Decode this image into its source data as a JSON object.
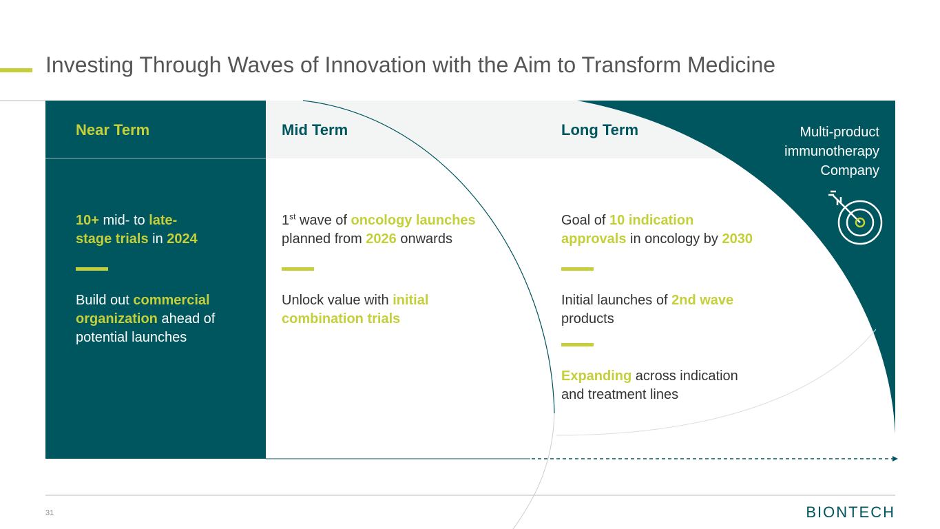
{
  "title": "Investing Through Waves of Innovation with the Aim to Transform Medicine",
  "columns": [
    {
      "heading": "Near Term",
      "blocks": [
        [
          [
            {
              "text": "10+",
              "accent": true
            },
            {
              "text": " mid- to "
            },
            {
              "text": "late-",
              "accent": true
            }
          ],
          [
            {
              "text": "stage trials",
              "accent": true
            },
            {
              "text": " in "
            },
            {
              "text": "2024",
              "accent": true
            }
          ]
        ],
        [
          [
            {
              "text": "Build out "
            },
            {
              "text": "commercial",
              "accent": true
            }
          ],
          [
            {
              "text": "organization",
              "accent": true
            },
            {
              "text": " ahead of"
            }
          ],
          [
            {
              "text": "potential launches"
            }
          ]
        ]
      ]
    },
    {
      "heading": "Mid Term",
      "blocks": [
        [
          [
            {
              "text": "1"
            },
            {
              "text": "st",
              "sup": true
            },
            {
              "text": " wave of "
            },
            {
              "text": "oncology launches",
              "accent": true
            }
          ],
          [
            {
              "text": "planned from "
            },
            {
              "text": "2026",
              "accent": true
            },
            {
              "text": " onwards"
            }
          ]
        ],
        [
          [
            {
              "text": "Unlock value with "
            },
            {
              "text": "initial",
              "accent": true
            }
          ],
          [
            {
              "text": "combination trials",
              "accent": true
            }
          ]
        ]
      ]
    },
    {
      "heading": "Long Term",
      "blocks": [
        [
          [
            {
              "text": "Goal of "
            },
            {
              "text": "10 indication",
              "accent": true
            }
          ],
          [
            {
              "text": "approvals",
              "accent": true
            },
            {
              "text": " in oncology by "
            },
            {
              "text": "2030",
              "accent": true
            }
          ]
        ],
        [
          [
            {
              "text": "Initial launches of "
            },
            {
              "text": "2nd wave",
              "accent": true
            }
          ],
          [
            {
              "text": "products"
            }
          ]
        ],
        [
          [
            {
              "text": "Expanding",
              "accent": true
            },
            {
              "text": " across indication"
            }
          ],
          [
            {
              "text": "and treatment lines"
            }
          ]
        ]
      ]
    }
  ],
  "side_note": [
    "Multi-product",
    "immunotherapy",
    "Company"
  ],
  "page_number": "31",
  "logo": "BIONTECH"
}
